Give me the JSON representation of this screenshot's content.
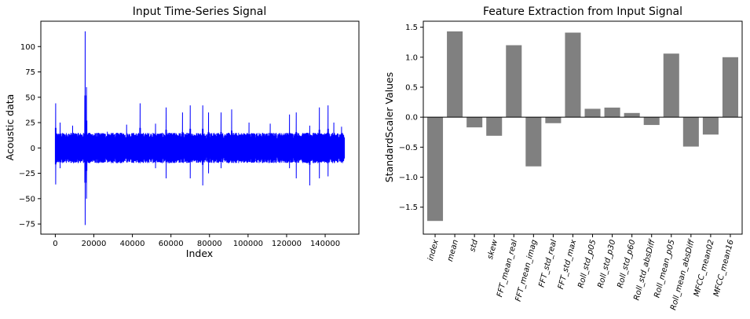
{
  "chart_data": [
    {
      "type": "line",
      "title": "Input Time-Series Signal",
      "xlabel": "Index",
      "ylabel": "Acoustic data",
      "xlim": [
        -7500,
        157500
      ],
      "ylim": [
        -85,
        125
      ],
      "xticks": [
        0,
        20000,
        40000,
        60000,
        80000,
        100000,
        120000,
        140000
      ],
      "xtick_labels": [
        "0",
        "20000",
        "40000",
        "60000",
        "80000",
        "100000",
        "120000",
        "140000"
      ],
      "yticks": [
        -75,
        -50,
        -25,
        0,
        25,
        50,
        75,
        100
      ],
      "ytick_labels": [
        "−75",
        "−50",
        "−25",
        "0",
        "25",
        "50",
        "75",
        "100"
      ],
      "grid": false,
      "color": "#0000ff",
      "x_end": 150000,
      "spikes": [
        {
          "x": 200,
          "max": 44,
          "min": -36
        },
        {
          "x": 2500,
          "max": 25,
          "min": -20
        },
        {
          "x": 9000,
          "max": 22,
          "min": -12
        },
        {
          "x": 15500,
          "max": 115,
          "min": -76
        },
        {
          "x": 16200,
          "max": 60,
          "min": -50
        },
        {
          "x": 27000,
          "max": 16,
          "min": -8
        },
        {
          "x": 37000,
          "max": 23,
          "min": -9
        },
        {
          "x": 44000,
          "max": 44,
          "min": -15
        },
        {
          "x": 52000,
          "max": 24,
          "min": -20
        },
        {
          "x": 57500,
          "max": 40,
          "min": -30
        },
        {
          "x": 66000,
          "max": 35,
          "min": -10
        },
        {
          "x": 70000,
          "max": 42,
          "min": -30
        },
        {
          "x": 76500,
          "max": 42,
          "min": -37
        },
        {
          "x": 79500,
          "max": 35,
          "min": -25
        },
        {
          "x": 86000,
          "max": 35,
          "min": -20
        },
        {
          "x": 91500,
          "max": 38,
          "min": -8
        },
        {
          "x": 100500,
          "max": 25,
          "min": -12
        },
        {
          "x": 111500,
          "max": 24,
          "min": -10
        },
        {
          "x": 121500,
          "max": 33,
          "min": -20
        },
        {
          "x": 125000,
          "max": 35,
          "min": -30
        },
        {
          "x": 132000,
          "max": 22,
          "min": -37
        },
        {
          "x": 137000,
          "max": 40,
          "min": -30
        },
        {
          "x": 141500,
          "max": 42,
          "min": -28
        },
        {
          "x": 144500,
          "max": 25,
          "min": -12
        },
        {
          "x": 148500,
          "max": 21,
          "min": -10
        }
      ]
    },
    {
      "type": "bar",
      "title": "Feature Extraction from Input Signal",
      "xlabel": "",
      "ylabel": "StandardScaler Values",
      "ylim": [
        -1.95,
        1.6
      ],
      "yticks": [
        -1.5,
        -1.0,
        -0.5,
        0.0,
        0.5,
        1.0,
        1.5
      ],
      "ytick_labels": [
        "−1.5",
        "−1.0",
        "−0.5",
        "0.0",
        "0.5",
        "1.0",
        "1.5"
      ],
      "grid": false,
      "color": "#808080",
      "categories": [
        "index",
        "mean",
        "std",
        "skew",
        "FFT_mean_real",
        "FFT_mean_imag",
        "FFT_std_real",
        "FFT_std_max",
        "Roll_std_p05",
        "Roll_std_p30",
        "Roll_std_p60",
        "Roll_std_absDiff",
        "Roll_mean_p05",
        "Roll_mean_absDiff",
        "MFCC_mean02",
        "MFCC_mean16"
      ],
      "values": [
        -1.73,
        1.43,
        -0.17,
        -0.31,
        1.2,
        -0.82,
        -0.1,
        1.41,
        0.14,
        0.16,
        0.07,
        -0.13,
        1.06,
        -0.49,
        -0.29,
        1.0
      ]
    }
  ]
}
